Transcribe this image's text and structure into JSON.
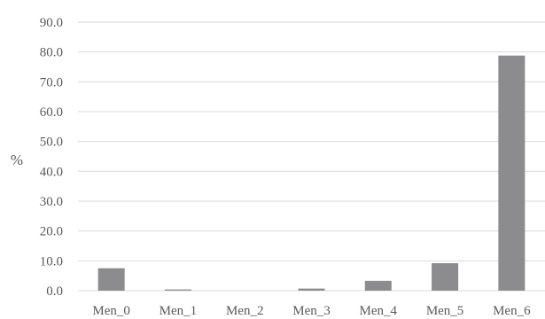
{
  "chart_data": {
    "type": "bar",
    "title": "",
    "xlabel": "",
    "ylabel": "%",
    "ylim": [
      0,
      90
    ],
    "y_ticks": [
      0,
      10,
      20,
      30,
      40,
      50,
      60,
      70,
      80,
      90
    ],
    "y_tick_labels": [
      "0.0",
      "10.0",
      "20.0",
      "30.0",
      "40.0",
      "50.0",
      "60.0",
      "70.0",
      "80.0",
      "90.0"
    ],
    "categories": [
      "Men_0",
      "Men_1",
      "Men_2",
      "Men_3",
      "Men_4",
      "Men_5",
      "Men_6"
    ],
    "values": [
      7.5,
      0.4,
      0.0,
      0.7,
      3.3,
      9.2,
      78.8
    ],
    "grid": true,
    "legend": "none",
    "bar_color": "#8c8c8f",
    "grid_color": "#d9d9d9",
    "text_color": "#595959"
  }
}
